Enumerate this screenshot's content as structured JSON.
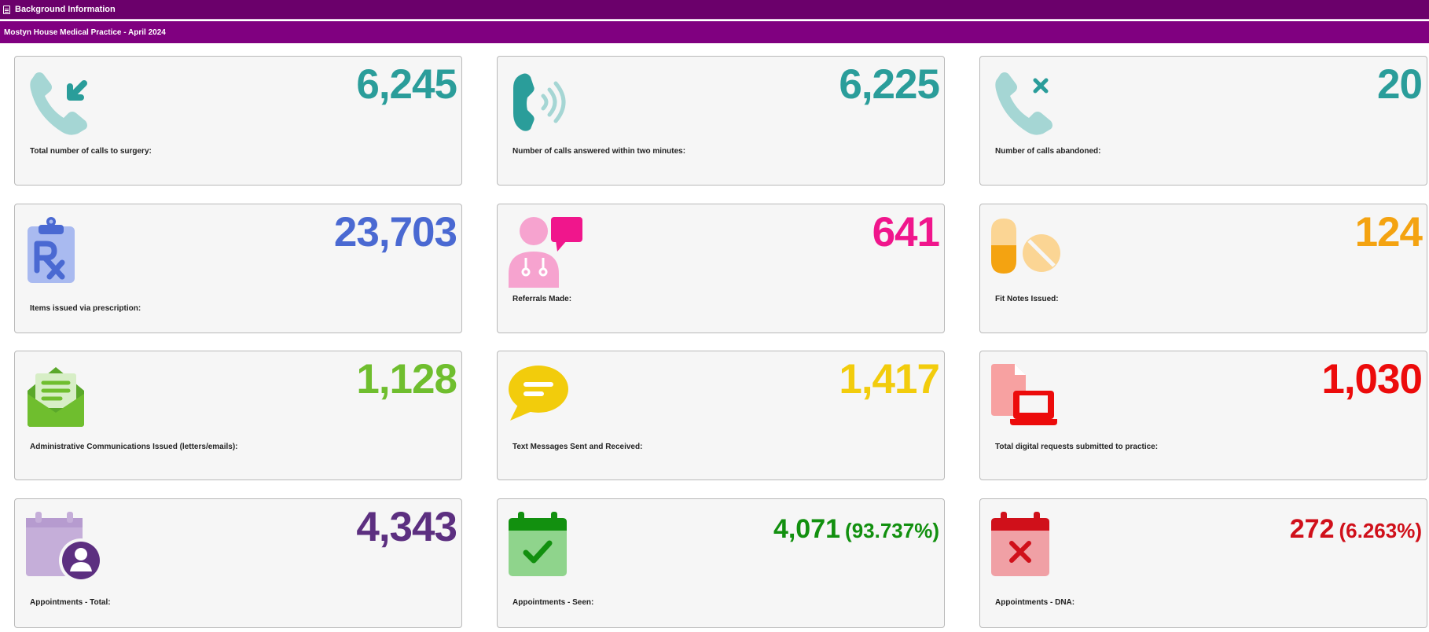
{
  "header": {
    "title": "Background Information",
    "icon": "document-icon"
  },
  "subheader": {
    "title": "Mostyn House Medical Practice - April 2024"
  },
  "cards": [
    {
      "value": "6,245",
      "label": "Total number of calls to surgery:",
      "color": "#2a9d9a",
      "icon": "phone-incoming-icon"
    },
    {
      "value": "6,225",
      "label": "Number of calls answered within two minutes:",
      "color": "#2a9d9a",
      "icon": "phone-ringing-icon"
    },
    {
      "value": "20",
      "label": "Number of calls abandoned:",
      "color": "#2a9d9a",
      "icon": "phone-missed-icon"
    },
    {
      "value": "23,703",
      "label": "Items issued via prescription:",
      "color": "#4a69d2",
      "icon": "prescription-clipboard-icon"
    },
    {
      "value": "641",
      "label": "Referrals Made:",
      "color": "#f0168c",
      "icon": "doctor-chat-icon"
    },
    {
      "value": "124",
      "label": "Fit Notes Issued:",
      "color": "#f4a311",
      "icon": "pills-icon"
    },
    {
      "value": "1,128",
      "label": "Administrative Communications Issued (letters/emails):",
      "color": "#6fbe2e",
      "icon": "open-envelope-icon"
    },
    {
      "value": "1,417",
      "label": "Text Messages Sent and Received:",
      "color": "#f2cc0c",
      "icon": "speech-bubble-icon"
    },
    {
      "value": "1,030",
      "label": "Total digital requests submitted to practice:",
      "color": "#ec0b0b",
      "icon": "laptop-document-icon"
    },
    {
      "value": "4,343",
      "label": "Appointments - Total:",
      "color": "#5c2f80",
      "icon": "calendar-user-icon"
    },
    {
      "value": "4,071",
      "pct": "(93.737%)",
      "label": "Appointments - Seen:",
      "color": "#12900f",
      "icon": "calendar-check-icon"
    },
    {
      "value": "272",
      "pct": "(6.263%)",
      "label": "Appointments - DNA:",
      "color": "#d0101a",
      "icon": "calendar-cross-icon"
    }
  ]
}
